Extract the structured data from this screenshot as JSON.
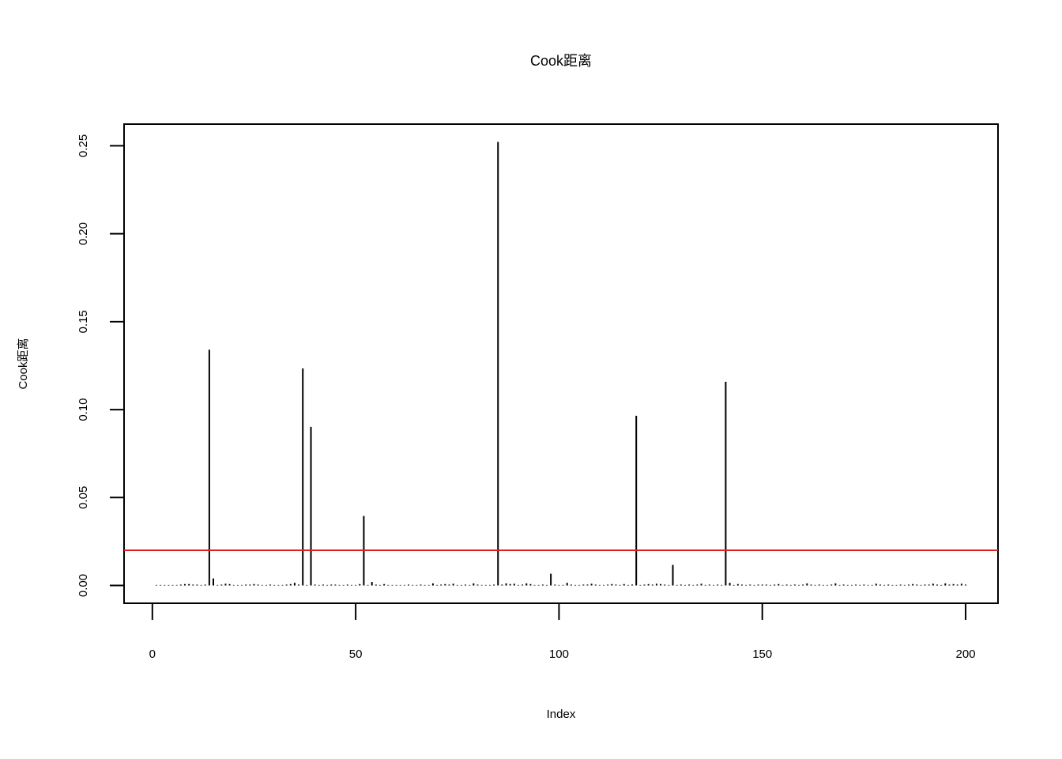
{
  "chart_data": {
    "type": "spike",
    "title": "Cook距离",
    "x_label": "Index",
    "y_label": "Cook距离",
    "color": "#000000",
    "threshold": 0.02,
    "threshold_color": "#e0201b",
    "x": [
      1,
      2,
      3,
      4,
      5,
      6,
      7,
      8,
      9,
      10,
      11,
      12,
      13,
      14,
      15,
      16,
      17,
      18,
      19,
      20,
      21,
      22,
      23,
      24,
      25,
      26,
      27,
      28,
      29,
      30,
      31,
      32,
      33,
      34,
      35,
      36,
      37,
      38,
      39,
      40,
      41,
      42,
      43,
      44,
      45,
      46,
      47,
      48,
      49,
      50,
      51,
      52,
      53,
      54,
      55,
      56,
      57,
      58,
      59,
      60,
      61,
      62,
      63,
      64,
      65,
      66,
      67,
      68,
      69,
      70,
      71,
      72,
      73,
      74,
      75,
      76,
      77,
      78,
      79,
      80,
      81,
      82,
      83,
      84,
      85,
      86,
      87,
      88,
      89,
      90,
      91,
      92,
      93,
      94,
      95,
      96,
      97,
      98,
      99,
      100,
      101,
      102,
      103,
      104,
      105,
      106,
      107,
      108,
      109,
      110,
      111,
      112,
      113,
      114,
      115,
      116,
      117,
      118,
      119,
      120,
      121,
      122,
      123,
      124,
      125,
      126,
      127,
      128,
      129,
      130,
      131,
      132,
      133,
      134,
      135,
      136,
      137,
      138,
      139,
      140,
      141,
      142,
      143,
      144,
      145,
      146,
      147,
      148,
      149,
      150,
      151,
      152,
      153,
      154,
      155,
      156,
      157,
      158,
      159,
      160,
      161,
      162,
      163,
      164,
      165,
      166,
      167,
      168,
      169,
      170,
      171,
      172,
      173,
      174,
      175,
      176,
      177,
      178,
      179,
      180,
      181,
      182,
      183,
      184,
      185,
      186,
      187,
      188,
      189,
      190,
      191,
      192,
      193,
      194,
      195,
      196,
      197,
      198,
      199,
      200
    ],
    "values": [
      0.0003,
      0.0003,
      0.0003,
      0.0003,
      0.0003,
      0.0003,
      0.0005,
      0.0008,
      0.0008,
      0.0005,
      0.0005,
      0.0003,
      0.0005,
      0.134,
      0.004,
      0.0003,
      0.0005,
      0.001,
      0.0008,
      0.0003,
      0.0003,
      0.0003,
      0.0005,
      0.0005,
      0.0008,
      0.0005,
      0.0003,
      0.0003,
      0.0005,
      0.0003,
      0.0003,
      0.0003,
      0.0005,
      0.0008,
      0.0015,
      0.0005,
      0.1234,
      0.0003,
      0.0902,
      0.0005,
      0.0003,
      0.0005,
      0.0003,
      0.0005,
      0.0005,
      0.0003,
      0.0003,
      0.0005,
      0.0003,
      0.0003,
      0.0008,
      0.0395,
      0.0003,
      0.002,
      0.0005,
      0.0003,
      0.0008,
      0.0003,
      0.0003,
      0.0003,
      0.0003,
      0.0003,
      0.0005,
      0.0003,
      0.0003,
      0.0005,
      0.0003,
      0.0003,
      0.0012,
      0.0003,
      0.0005,
      0.0008,
      0.0005,
      0.001,
      0.0003,
      0.0003,
      0.0005,
      0.0003,
      0.0012,
      0.0005,
      0.0003,
      0.0003,
      0.0003,
      0.0005,
      0.2522,
      0.0005,
      0.0012,
      0.0008,
      0.001,
      0.0003,
      0.0005,
      0.0012,
      0.0008,
      0.0003,
      0.0003,
      0.0005,
      0.0003,
      0.0067,
      0.0005,
      0.0003,
      0.0003,
      0.0015,
      0.0005,
      0.0003,
      0.0003,
      0.0005,
      0.0005,
      0.001,
      0.0005,
      0.0003,
      0.0003,
      0.0005,
      0.0008,
      0.0005,
      0.0003,
      0.0008,
      0.0003,
      0.0005,
      0.0965,
      0.0003,
      0.0005,
      0.0008,
      0.0005,
      0.001,
      0.0008,
      0.0005,
      0.0003,
      0.0117,
      0.0003,
      0.0005,
      0.0003,
      0.0005,
      0.0003,
      0.0005,
      0.001,
      0.0003,
      0.0005,
      0.0003,
      0.0005,
      0.0003,
      0.1158,
      0.0015,
      0.0003,
      0.0008,
      0.0005,
      0.0003,
      0.0005,
      0.0003,
      0.0005,
      0.0005,
      0.0005,
      0.0003,
      0.0005,
      0.0008,
      0.0003,
      0.0005,
      0.0003,
      0.0005,
      0.0003,
      0.0005,
      0.0012,
      0.0005,
      0.0003,
      0.0005,
      0.0003,
      0.0003,
      0.0005,
      0.0012,
      0.0003,
      0.0005,
      0.0003,
      0.0003,
      0.0005,
      0.0003,
      0.0005,
      0.0003,
      0.0003,
      0.001,
      0.0005,
      0.0003,
      0.0005,
      0.0003,
      0.0003,
      0.0005,
      0.0003,
      0.0005,
      0.0008,
      0.0005,
      0.0003,
      0.0005,
      0.0005,
      0.001,
      0.0005,
      0.0003,
      0.0012,
      0.0005,
      0.0008,
      0.0005,
      0.001,
      0.0005
    ],
    "xlim": [
      -6.96,
      207.96
    ],
    "xticks": [
      0,
      50,
      100,
      150,
      200
    ],
    "ylim": [
      -0.0101,
      0.2623
    ],
    "yticks": [
      {
        "value": 0,
        "label": "0.00"
      },
      {
        "value": 0.05,
        "label": "0.05"
      },
      {
        "value": 0.1,
        "label": "0.10"
      },
      {
        "value": 0.15,
        "label": "0.15"
      },
      {
        "value": 0.2,
        "label": "0.20"
      },
      {
        "value": 0.25,
        "label": "0.25"
      }
    ]
  }
}
